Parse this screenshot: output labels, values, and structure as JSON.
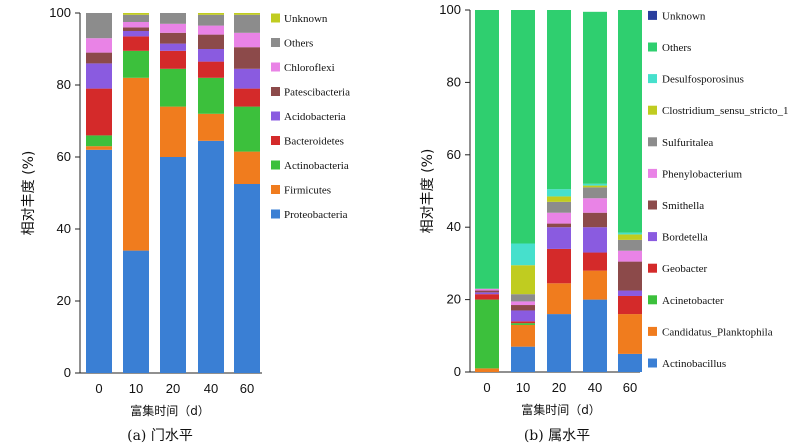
{
  "chart_data": [
    {
      "type": "bar",
      "stacked": true,
      "caption": "(a) 门水平",
      "ylabel": "相对丰度 (%)",
      "xlabel": "富集时间（d）",
      "ylim": [
        0,
        100
      ],
      "yticks": [
        0,
        20,
        40,
        60,
        80,
        100
      ],
      "categories": [
        "0",
        "10",
        "20",
        "40",
        "60"
      ],
      "legend_position": "right",
      "series": [
        {
          "name": "Proteobacteria",
          "color": "#3a7fd4",
          "values": [
            62,
            34,
            60,
            64.5,
            52.5
          ]
        },
        {
          "name": "Firmicutes",
          "color": "#f07c1e",
          "values": [
            1,
            48,
            14,
            7.5,
            9
          ]
        },
        {
          "name": "Actinobacteria",
          "color": "#3cc03c",
          "values": [
            3,
            7.5,
            10.5,
            10,
            12.5
          ]
        },
        {
          "name": "Bacteroidetes",
          "color": "#d42a2a",
          "values": [
            13,
            4,
            5,
            4.5,
            5
          ]
        },
        {
          "name": "Acidobacteria",
          "color": "#8a5be0",
          "values": [
            7,
            1.5,
            2,
            3.5,
            5.5
          ]
        },
        {
          "name": "Patescibacteria",
          "color": "#8c4a4a",
          "values": [
            3,
            1,
            3,
            4,
            6
          ]
        },
        {
          "name": "Chloroflexi",
          "color": "#e983e6",
          "values": [
            4,
            1.5,
            2.5,
            2.5,
            4
          ]
        },
        {
          "name": "Others",
          "color": "#8c8c8c",
          "values": [
            7,
            2,
            3,
            3,
            5
          ]
        },
        {
          "name": "Unknown",
          "color": "#c0cc20",
          "values": [
            0,
            0.5,
            0,
            0.5,
            0.5
          ]
        }
      ]
    },
    {
      "type": "bar",
      "stacked": true,
      "caption": "(b) 属水平",
      "ylabel": "相对丰度 (%)",
      "xlabel": "富集时间（d）",
      "ylim": [
        0,
        100
      ],
      "yticks": [
        0,
        20,
        40,
        60,
        80,
        100
      ],
      "categories": [
        "0",
        "10",
        "20",
        "40",
        "60"
      ],
      "legend_position": "right",
      "series": [
        {
          "name": "Actinobacillus",
          "color": "#3a7fd4",
          "values": [
            0,
            7,
            16,
            20,
            5
          ]
        },
        {
          "name": "Candidatus_Planktophila",
          "color": "#f07c1e",
          "values": [
            1,
            6,
            8.5,
            8,
            11
          ]
        },
        {
          "name": "Acinetobacter",
          "color": "#3cc03c",
          "values": [
            19,
            0.5,
            0,
            0,
            0
          ]
        },
        {
          "name": "Geobacter",
          "color": "#d42a2a",
          "values": [
            1.5,
            0.5,
            9.5,
            5,
            5
          ]
        },
        {
          "name": "Bordetella",
          "color": "#8a5be0",
          "values": [
            0.5,
            3,
            6,
            7,
            1.5
          ]
        },
        {
          "name": "Smithella",
          "color": "#8c4a4a",
          "values": [
            0.5,
            1.5,
            1,
            4,
            8
          ]
        },
        {
          "name": "Phenylobacterium",
          "color": "#e983e6",
          "values": [
            0.5,
            1,
            3,
            4,
            3
          ]
        },
        {
          "name": "Sulfuritalea",
          "color": "#8c8c8c",
          "values": [
            0,
            2,
            3,
            3,
            3
          ]
        },
        {
          "name": "Clostridium_sensu_stricto_1",
          "color": "#c0cc20",
          "values": [
            0,
            8,
            1.5,
            0.5,
            1.5
          ]
        },
        {
          "name": "Desulfosporosinus",
          "color": "#46e0cc",
          "values": [
            0,
            6,
            2,
            0.5,
            0.5
          ]
        },
        {
          "name": "Others",
          "color": "#2fcf6f",
          "values": [
            77,
            64.5,
            49.5,
            47.5,
            61.5
          ]
        },
        {
          "name": "Unknown",
          "color": "#2a3f9e",
          "values": [
            0,
            0,
            0,
            0,
            0
          ]
        }
      ]
    }
  ]
}
